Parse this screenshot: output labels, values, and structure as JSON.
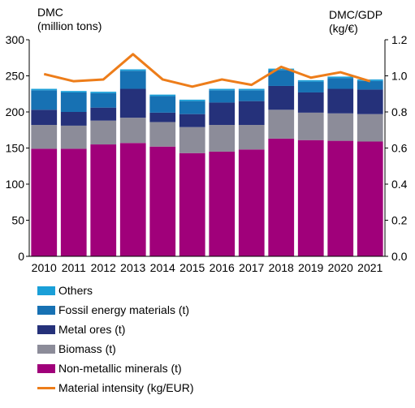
{
  "chart_data": {
    "type": "bar",
    "stacked": true,
    "left_axis_title": [
      "DMC",
      "(million tons)"
    ],
    "right_axis_title": [
      "DMC/GDP",
      "(kg/€)"
    ],
    "categories": [
      "2010",
      "2011",
      "2012",
      "2013",
      "2014",
      "2015",
      "2016",
      "2017",
      "2018",
      "2019",
      "2020",
      "2021"
    ],
    "ylim": [
      0,
      300
    ],
    "yticks": [
      "0",
      "50",
      "100",
      "150",
      "200",
      "250",
      "300"
    ],
    "y2lim": [
      0,
      1.2
    ],
    "y2ticks": [
      "0.0",
      "0.2",
      "0.4",
      "0.6",
      "0.8",
      "1.0",
      "1.2"
    ],
    "grid": false,
    "series": [
      {
        "name": "Non-metallic minerals (t)",
        "color": "#a0007a",
        "values": [
          149,
          149,
          155,
          157,
          152,
          143,
          145,
          148,
          163,
          161,
          160,
          159
        ]
      },
      {
        "name": "Biomass (t)",
        "color": "#8c8c99",
        "values": [
          33,
          32,
          33,
          35,
          34,
          36,
          37,
          34,
          40,
          38,
          38,
          38
        ]
      },
      {
        "name": "Metal ores (t)",
        "color": "#25317a",
        "values": [
          21,
          19,
          18,
          40,
          13,
          18,
          31,
          33,
          33,
          28,
          34,
          34
        ]
      },
      {
        "name": "Fossil energy materials (t)",
        "color": "#1771b3",
        "values": [
          27,
          27,
          20,
          25,
          23,
          18,
          17,
          15,
          22,
          15,
          15,
          12
        ]
      },
      {
        "name": "Others",
        "color": "#1a9fd8",
        "values": [
          2,
          2,
          2,
          2,
          2,
          2,
          2,
          2,
          2,
          2,
          2,
          2
        ]
      }
    ],
    "line_series": {
      "name": "Material intensity (kg/EUR)",
      "color": "#ed7d1a",
      "values": [
        1.01,
        0.97,
        0.98,
        1.12,
        0.98,
        0.94,
        0.98,
        0.95,
        1.05,
        0.99,
        1.02,
        0.97
      ]
    },
    "legend_order": [
      "Others",
      "Fossil energy materials (t)",
      "Metal ores (t)",
      "Biomass (t)",
      "Non-metallic minerals (t)",
      "Material intensity (kg/EUR)"
    ]
  }
}
